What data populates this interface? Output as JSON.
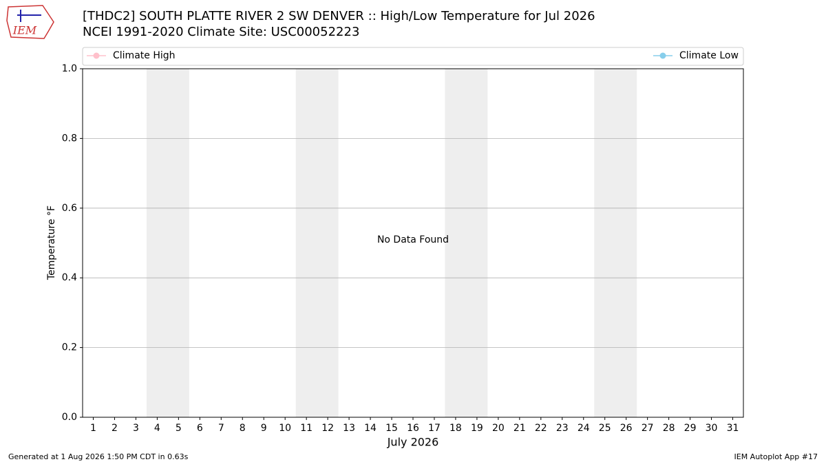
{
  "chart_data": {
    "type": "line",
    "title": "[THDC2] SOUTH PLATTE RIVER 2 SW DENVER :: High/Low Temperature for Jul 2026",
    "subtitle": "NCEI 1991-2020 Climate Site: USC00052223",
    "xlabel": "July 2026",
    "ylabel": "Temperature °F",
    "annotation": "No Data Found",
    "series": [
      {
        "name": "Climate High",
        "color": "#ffc0cb"
      },
      {
        "name": "Climate Low",
        "color": "#87ceeb"
      }
    ],
    "xlim": [
      0.5,
      31.5
    ],
    "xticks": [
      1,
      2,
      3,
      4,
      5,
      6,
      7,
      8,
      9,
      10,
      11,
      12,
      13,
      14,
      15,
      16,
      17,
      18,
      19,
      20,
      21,
      22,
      23,
      24,
      25,
      26,
      27,
      28,
      29,
      30,
      31
    ],
    "ylim": [
      0,
      1
    ],
    "yticks": [
      {
        "value": 0,
        "label": "0.0"
      },
      0.2,
      0.4,
      0.6,
      0.8,
      {
        "value": 1,
        "label": "1.0"
      }
    ],
    "grid": true,
    "shaded_spans": [
      [
        3.5,
        5.5
      ],
      [
        10.5,
        12.5
      ],
      [
        17.5,
        19.5
      ],
      [
        24.5,
        26.5
      ]
    ]
  },
  "footer": {
    "left": "Generated at 1 Aug 2026 1:50 PM CDT in 0.63s",
    "right": "IEM Autoplot App #17"
  },
  "logo_text": "IEM"
}
